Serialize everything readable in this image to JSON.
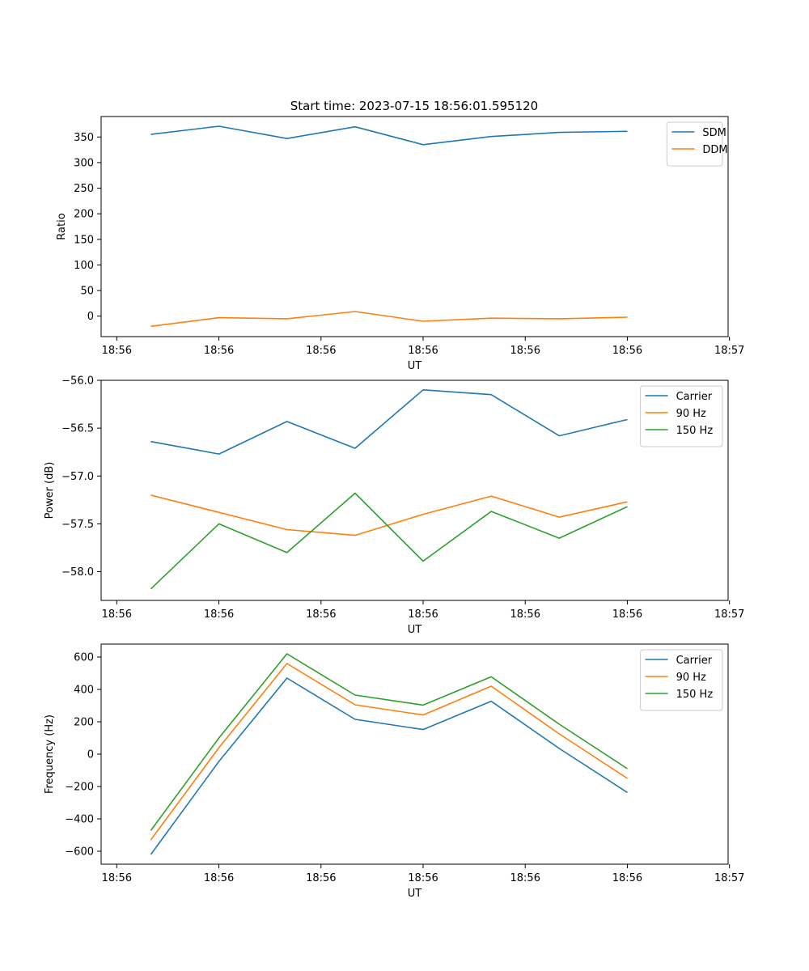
{
  "figure_title": "Start time: 2023-07-15 18:56:01.595120",
  "colors": {
    "blue": "#1f77b4",
    "orange": "#ff7f0e",
    "green": "#2ca02c"
  },
  "chart_data": [
    {
      "type": "line",
      "title": "Start time: 2023-07-15 18:56:01.595120",
      "xlabel": "UT",
      "ylabel": "Ratio",
      "x": [
        1,
        2,
        3,
        4,
        5,
        6,
        7,
        8
      ],
      "xlim": [
        0.27,
        9.48
      ],
      "x_ticks": [
        0.5,
        2.0,
        3.5,
        5.0,
        6.5,
        8.0,
        9.5
      ],
      "x_tick_labels": [
        "18:56",
        "18:56",
        "18:56",
        "18:56",
        "18:56",
        "18:56",
        "18:57"
      ],
      "ylim": [
        -40,
        390
      ],
      "y_ticks": [
        0,
        50,
        100,
        150,
        200,
        250,
        300,
        350
      ],
      "y_tick_labels": [
        "0",
        "50",
        "100",
        "150",
        "200",
        "250",
        "300",
        "350"
      ],
      "legend_position": "upper-right",
      "series": [
        {
          "name": "SDM",
          "color": "#1f77b4",
          "values": [
            355,
            371,
            347,
            370,
            335,
            351,
            359,
            361
          ]
        },
        {
          "name": "DDM",
          "color": "#ff7f0e",
          "values": [
            -20,
            -3,
            -5,
            9,
            -10,
            -4,
            -5,
            -2
          ]
        }
      ]
    },
    {
      "type": "line",
      "title": "",
      "xlabel": "UT",
      "ylabel": "Power (dB)",
      "x": [
        1,
        2,
        3,
        4,
        5,
        6,
        7,
        8
      ],
      "xlim": [
        0.27,
        9.48
      ],
      "x_ticks": [
        0.5,
        2.0,
        3.5,
        5.0,
        6.5,
        8.0,
        9.5
      ],
      "x_tick_labels": [
        "18:56",
        "18:56",
        "18:56",
        "18:56",
        "18:56",
        "18:56",
        "18:57"
      ],
      "ylim": [
        -58.3,
        -56.0
      ],
      "y_ticks": [
        -58.0,
        -57.5,
        -57.0,
        -56.5,
        -56.0
      ],
      "y_tick_labels": [
        "−58.0",
        "−57.5",
        "−57.0",
        "−56.5",
        "−56.0"
      ],
      "legend_position": "upper-right",
      "series": [
        {
          "name": "Carrier",
          "color": "#1f77b4",
          "values": [
            -56.64,
            -56.77,
            -56.43,
            -56.71,
            -56.1,
            -56.15,
            -56.58,
            -56.41
          ]
        },
        {
          "name": "90 Hz",
          "color": "#ff7f0e",
          "values": [
            -57.2,
            -57.38,
            -57.56,
            -57.62,
            -57.4,
            -57.21,
            -57.43,
            -57.27
          ]
        },
        {
          "name": "150 Hz",
          "color": "#2ca02c",
          "values": [
            -58.18,
            -57.5,
            -57.8,
            -57.18,
            -57.89,
            -57.37,
            -57.65,
            -57.32
          ]
        }
      ]
    },
    {
      "type": "line",
      "title": "",
      "xlabel": "UT",
      "ylabel": "Frequency (Hz)",
      "x": [
        1,
        2,
        3,
        4,
        5,
        6,
        7,
        8
      ],
      "xlim": [
        0.27,
        9.48
      ],
      "x_ticks": [
        0.5,
        2.0,
        3.5,
        5.0,
        6.5,
        8.0,
        9.5
      ],
      "x_tick_labels": [
        "18:56",
        "18:56",
        "18:56",
        "18:56",
        "18:56",
        "18:56",
        "18:57"
      ],
      "ylim": [
        -680,
        680
      ],
      "y_ticks": [
        -600,
        -400,
        -200,
        0,
        200,
        400,
        600
      ],
      "y_tick_labels": [
        "−600",
        "−400",
        "−200",
        "0",
        "200",
        "400",
        "600"
      ],
      "legend_position": "upper-right",
      "series": [
        {
          "name": "Carrier",
          "color": "#1f77b4",
          "values": [
            -620,
            -45,
            470,
            215,
            152,
            327,
            35,
            -237
          ]
        },
        {
          "name": "90 Hz",
          "color": "#ff7f0e",
          "values": [
            -530,
            40,
            560,
            305,
            242,
            420,
            125,
            -150
          ]
        },
        {
          "name": "150 Hz",
          "color": "#2ca02c",
          "values": [
            -472,
            100,
            620,
            365,
            303,
            478,
            185,
            -90
          ]
        }
      ]
    }
  ]
}
